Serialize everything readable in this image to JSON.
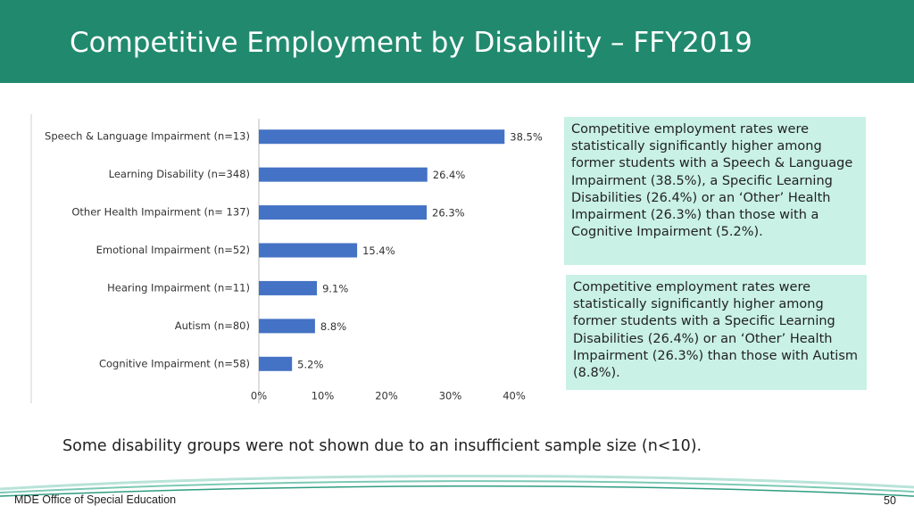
{
  "header": {
    "title": "Competitive Employment by Disability – FFY2019"
  },
  "chart_data": {
    "type": "bar",
    "orientation": "horizontal",
    "categories": [
      "Speech & Language Impairment (n=13)",
      "Learning Disability (n=348)",
      "Other Health Impairment (n= 137)",
      "Emotional Impairment (n=52)",
      "Hearing Impairment (n=11)",
      "Autism (n=80)",
      "Cognitive Impairment (n=58)"
    ],
    "values": [
      38.5,
      26.4,
      26.3,
      15.4,
      9.1,
      8.8,
      5.2
    ],
    "value_labels": [
      "38.5%",
      "26.4%",
      "26.3%",
      "15.4%",
      "9.1%",
      "8.8%",
      "5.2%"
    ],
    "color": "#4472c4",
    "xlim": [
      0,
      40
    ],
    "xticks": [
      {
        "value": 0,
        "label": "0%"
      },
      {
        "value": 10,
        "label": "10%"
      },
      {
        "value": 20,
        "label": "20%"
      },
      {
        "value": 30,
        "label": "30%"
      },
      {
        "value": 40,
        "label": "40%"
      }
    ],
    "grid": false
  },
  "notes": [
    "Competitive employment rates were statistically significantly higher among former students with a Speech & Language Impairment (38.5%), a Specific Learning Disabilities (26.4%) or an ‘Other’ Health Impairment (26.3%) than those with a Cognitive Impairment (5.2%).",
    "Competitive employment rates were statistically significantly higher among former students with a Specific Learning Disabilities (26.4%) or an ‘Other’ Health Impairment (26.3%) than those with Autism (8.8%)."
  ],
  "footnote": "Some disability groups were not shown due to an insufficient sample size (n<10).",
  "footer": {
    "organization": "MDE Office of Special Education",
    "page": "50"
  }
}
